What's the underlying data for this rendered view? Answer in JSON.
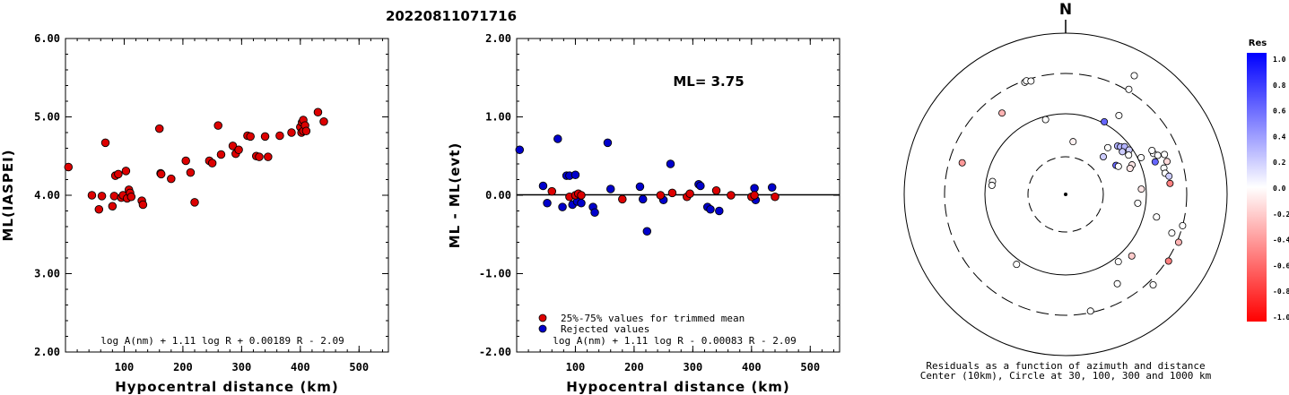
{
  "event_id": "20220811071716",
  "chart_data": [
    {
      "type": "scatter",
      "id": "ml-vs-distance",
      "xlabel": "Hypocentral distance (km)",
      "ylabel": "ML(IASPEI)",
      "xlim": [
        0,
        550
      ],
      "ylim": [
        2.0,
        6.0
      ],
      "xticks": [
        "100",
        "200",
        "300",
        "400",
        "500"
      ],
      "yticks": [
        "2.00",
        "3.00",
        "4.00",
        "5.00",
        "6.00"
      ],
      "formula": "log A(nm) + 1.11 log R + 0.00189 R - 2.09",
      "marker_color": "#dd0000",
      "points": [
        [
          5,
          4.36
        ],
        [
          45,
          4.0
        ],
        [
          57,
          3.82
        ],
        [
          62,
          3.99
        ],
        [
          68,
          4.67
        ],
        [
          80,
          3.86
        ],
        [
          83,
          3.99
        ],
        [
          85,
          4.25
        ],
        [
          90,
          4.27
        ],
        [
          95,
          3.97
        ],
        [
          98,
          4.0
        ],
        [
          103,
          4.31
        ],
        [
          105,
          3.96
        ],
        [
          108,
          4.07
        ],
        [
          110,
          4.03
        ],
        [
          112,
          3.98
        ],
        [
          130,
          3.93
        ],
        [
          132,
          3.88
        ],
        [
          160,
          4.85
        ],
        [
          162,
          4.28
        ],
        [
          163,
          4.27
        ],
        [
          180,
          4.21
        ],
        [
          205,
          4.44
        ],
        [
          213,
          4.29
        ],
        [
          220,
          3.91
        ],
        [
          245,
          4.44
        ],
        [
          250,
          4.41
        ],
        [
          260,
          4.89
        ],
        [
          265,
          4.52
        ],
        [
          285,
          4.63
        ],
        [
          290,
          4.53
        ],
        [
          295,
          4.58
        ],
        [
          310,
          4.76
        ],
        [
          315,
          4.75
        ],
        [
          325,
          4.5
        ],
        [
          330,
          4.49
        ],
        [
          340,
          4.75
        ],
        [
          345,
          4.49
        ],
        [
          365,
          4.76
        ],
        [
          385,
          4.8
        ],
        [
          400,
          4.87
        ],
        [
          402,
          4.8
        ],
        [
          403,
          4.93
        ],
        [
          405,
          4.96
        ],
        [
          405,
          4.82
        ],
        [
          408,
          4.89
        ],
        [
          410,
          4.82
        ],
        [
          430,
          5.06
        ],
        [
          440,
          4.94
        ]
      ]
    },
    {
      "type": "scatter",
      "id": "residual-vs-distance",
      "xlabel": "Hypocentral distance (km)",
      "ylabel": "ML - ML(evt)",
      "xlim": [
        0,
        550
      ],
      "ylim": [
        -2.0,
        2.0
      ],
      "xticks": [
        "100",
        "200",
        "300",
        "400",
        "500"
      ],
      "yticks": [
        "-2.00",
        "-1.00",
        "0.00",
        "1.00",
        "2.00"
      ],
      "ml_label": "ML= 3.75",
      "formula": "log A(nm) + 1.11 log R - 0.00083 R - 2.09",
      "legend": [
        {
          "label": "25%-75% values for trimmed mean",
          "color": "#dd0000"
        },
        {
          "label": "Rejected values",
          "color": "#0000cc"
        }
      ],
      "trimmed": [
        [
          60,
          0.05
        ],
        [
          90,
          -0.02
        ],
        [
          100,
          0.0
        ],
        [
          105,
          0.02
        ],
        [
          110,
          0.0
        ],
        [
          180,
          -0.05
        ],
        [
          245,
          0.0
        ],
        [
          265,
          0.03
        ],
        [
          290,
          -0.02
        ],
        [
          295,
          0.02
        ],
        [
          340,
          0.06
        ],
        [
          365,
          0.0
        ],
        [
          400,
          -0.02
        ],
        [
          405,
          0.0
        ],
        [
          440,
          -0.02
        ]
      ],
      "rejected": [
        [
          5,
          0.58
        ],
        [
          45,
          0.12
        ],
        [
          52,
          -0.1
        ],
        [
          70,
          0.72
        ],
        [
          78,
          -0.15
        ],
        [
          85,
          0.25
        ],
        [
          90,
          0.25
        ],
        [
          95,
          -0.12
        ],
        [
          100,
          0.26
        ],
        [
          103,
          -0.08
        ],
        [
          110,
          -0.1
        ],
        [
          130,
          -0.15
        ],
        [
          133,
          -0.22
        ],
        [
          155,
          0.67
        ],
        [
          160,
          0.08
        ],
        [
          210,
          0.11
        ],
        [
          215,
          -0.05
        ],
        [
          222,
          -0.46
        ],
        [
          250,
          -0.06
        ],
        [
          262,
          0.4
        ],
        [
          310,
          0.14
        ],
        [
          313,
          0.12
        ],
        [
          325,
          -0.15
        ],
        [
          330,
          -0.18
        ],
        [
          345,
          -0.2
        ],
        [
          405,
          0.09
        ],
        [
          407,
          -0.06
        ],
        [
          435,
          0.1
        ]
      ]
    }
  ],
  "polar": {
    "north_label": "N",
    "caption_line1": "Residuals as a function of azimuth and distance",
    "caption_line2": "Center (10km), Circle at 30, 100, 300 and 1000 km",
    "points": [
      {
        "az": -20,
        "r": 0.74,
        "res": 0.0
      },
      {
        "az": -19,
        "r": 0.745,
        "res": 0.0
      },
      {
        "az": -17,
        "r": 0.735,
        "res": 0.0
      },
      {
        "az": -38,
        "r": 0.64,
        "res": -0.3
      },
      {
        "az": -15,
        "r": 0.48,
        "res": 0.0
      },
      {
        "az": -73,
        "r": 0.67,
        "res": -0.4
      },
      {
        "az": -80,
        "r": 0.46,
        "res": 0.0
      },
      {
        "az": -83,
        "r": 0.46,
        "res": 0.0
      },
      {
        "az": 8,
        "r": 0.33,
        "res": -0.05
      },
      {
        "az": 28,
        "r": 0.51,
        "res": 0.6
      },
      {
        "az": 31,
        "r": 0.76,
        "res": 0.0
      },
      {
        "az": 34,
        "r": 0.59,
        "res": 0.0
      },
      {
        "az": 30,
        "r": 0.85,
        "res": 0.0
      },
      {
        "az": 42,
        "r": 0.39,
        "res": 0.0
      },
      {
        "az": 45,
        "r": 0.33,
        "res": 0.2
      },
      {
        "az": 47,
        "r": 0.44,
        "res": 0.3
      },
      {
        "az": 49,
        "r": 0.45,
        "res": 0.3
      },
      {
        "az": 51,
        "r": 0.47,
        "res": 0.3
      },
      {
        "az": 53,
        "r": 0.44,
        "res": 0.2
      },
      {
        "az": 55,
        "r": 0.48,
        "res": 0.2
      },
      {
        "az": 58,
        "r": 0.46,
        "res": 0.0
      },
      {
        "az": 60,
        "r": 0.36,
        "res": 0.6
      },
      {
        "az": 62,
        "r": 0.37,
        "res": 0.0
      },
      {
        "az": 64,
        "r": 0.52,
        "res": 0.0
      },
      {
        "az": 66,
        "r": 0.45,
        "res": -0.1
      },
      {
        "az": 65,
        "r": 0.6,
        "res": 0.0
      },
      {
        "az": 67,
        "r": 0.62,
        "res": 0.0
      },
      {
        "az": 68,
        "r": 0.66,
        "res": 0.0
      },
      {
        "az": 63,
        "r": 0.6,
        "res": 0.0
      },
      {
        "az": 68,
        "r": 0.43,
        "res": -0.1
      },
      {
        "az": 70,
        "r": 0.59,
        "res": 0.6
      },
      {
        "az": 72,
        "r": 0.66,
        "res": -0.15
      },
      {
        "az": 75,
        "r": 0.63,
        "res": 0.0
      },
      {
        "az": 78,
        "r": 0.63,
        "res": 0.0
      },
      {
        "az": 80,
        "r": 0.65,
        "res": 0.2
      },
      {
        "az": 84,
        "r": 0.65,
        "res": -0.5
      },
      {
        "az": 86,
        "r": 0.47,
        "res": -0.1
      },
      {
        "az": 97,
        "r": 0.45,
        "res": 0.0
      },
      {
        "az": 104,
        "r": 0.58,
        "res": 0.0
      },
      {
        "az": 110,
        "r": 0.7,
        "res": 0.0
      },
      {
        "az": 105,
        "r": 0.75,
        "res": 0.0
      },
      {
        "az": 113,
        "r": 0.76,
        "res": -0.3
      },
      {
        "az": 133,
        "r": 0.56,
        "res": -0.2
      },
      {
        "az": 123,
        "r": 0.76,
        "res": -0.5
      },
      {
        "az": 136,
        "r": 0.78,
        "res": 0.0
      },
      {
        "az": 142,
        "r": 0.53,
        "res": 0.0
      },
      {
        "az": 150,
        "r": 0.64,
        "res": 0.0
      },
      {
        "az": 168,
        "r": 0.74,
        "res": 0.0
      },
      {
        "az": 215,
        "r": 0.53,
        "res": 0.0
      }
    ]
  },
  "colorbar": {
    "title": "Res",
    "tick_labels": [
      "1.0",
      "0.8",
      "0.6",
      "0.4",
      "0.2",
      "0.0",
      "-0.2",
      "-0.4",
      "-0.6",
      "-0.8",
      "-1.0"
    ],
    "top_color": "#0000ff",
    "mid_color": "#ffffff",
    "bottom_color": "#ff0000"
  }
}
